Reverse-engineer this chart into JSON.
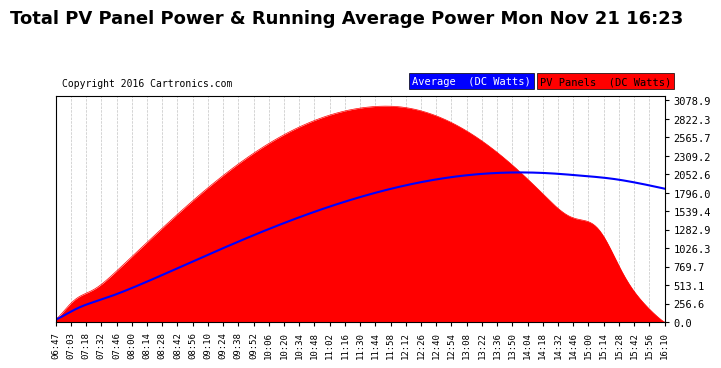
{
  "title": "Total PV Panel Power & Running Average Power Mon Nov 21 16:23",
  "copyright": "Copyright 2016 Cartronics.com",
  "ylabel_right_values": [
    0.0,
    256.6,
    513.1,
    769.7,
    1026.3,
    1282.9,
    1539.4,
    1796.0,
    2052.6,
    2309.2,
    2565.7,
    2822.3,
    3078.9
  ],
  "ymax": 3078.9,
  "ymin": 0.0,
  "pv_color": "#FF0000",
  "avg_color": "#0000FF",
  "bg_color": "#FFFFFF",
  "grid_color": "#AAAAAA",
  "title_fontsize": 13,
  "tick_labels": [
    "06:47",
    "07:03",
    "07:18",
    "07:32",
    "07:46",
    "08:00",
    "08:14",
    "08:28",
    "08:42",
    "08:56",
    "09:10",
    "09:24",
    "09:38",
    "09:52",
    "10:06",
    "10:20",
    "10:34",
    "10:48",
    "11:02",
    "11:16",
    "11:30",
    "11:44",
    "11:58",
    "12:12",
    "12:26",
    "12:40",
    "12:54",
    "13:08",
    "13:22",
    "13:36",
    "13:50",
    "14:04",
    "14:18",
    "14:32",
    "14:46",
    "15:00",
    "15:14",
    "15:28",
    "15:42",
    "15:56",
    "16:10"
  ],
  "legend_avg_label": "Average  (DC Watts)",
  "legend_pv_label": "PV Panels  (DC Watts)"
}
